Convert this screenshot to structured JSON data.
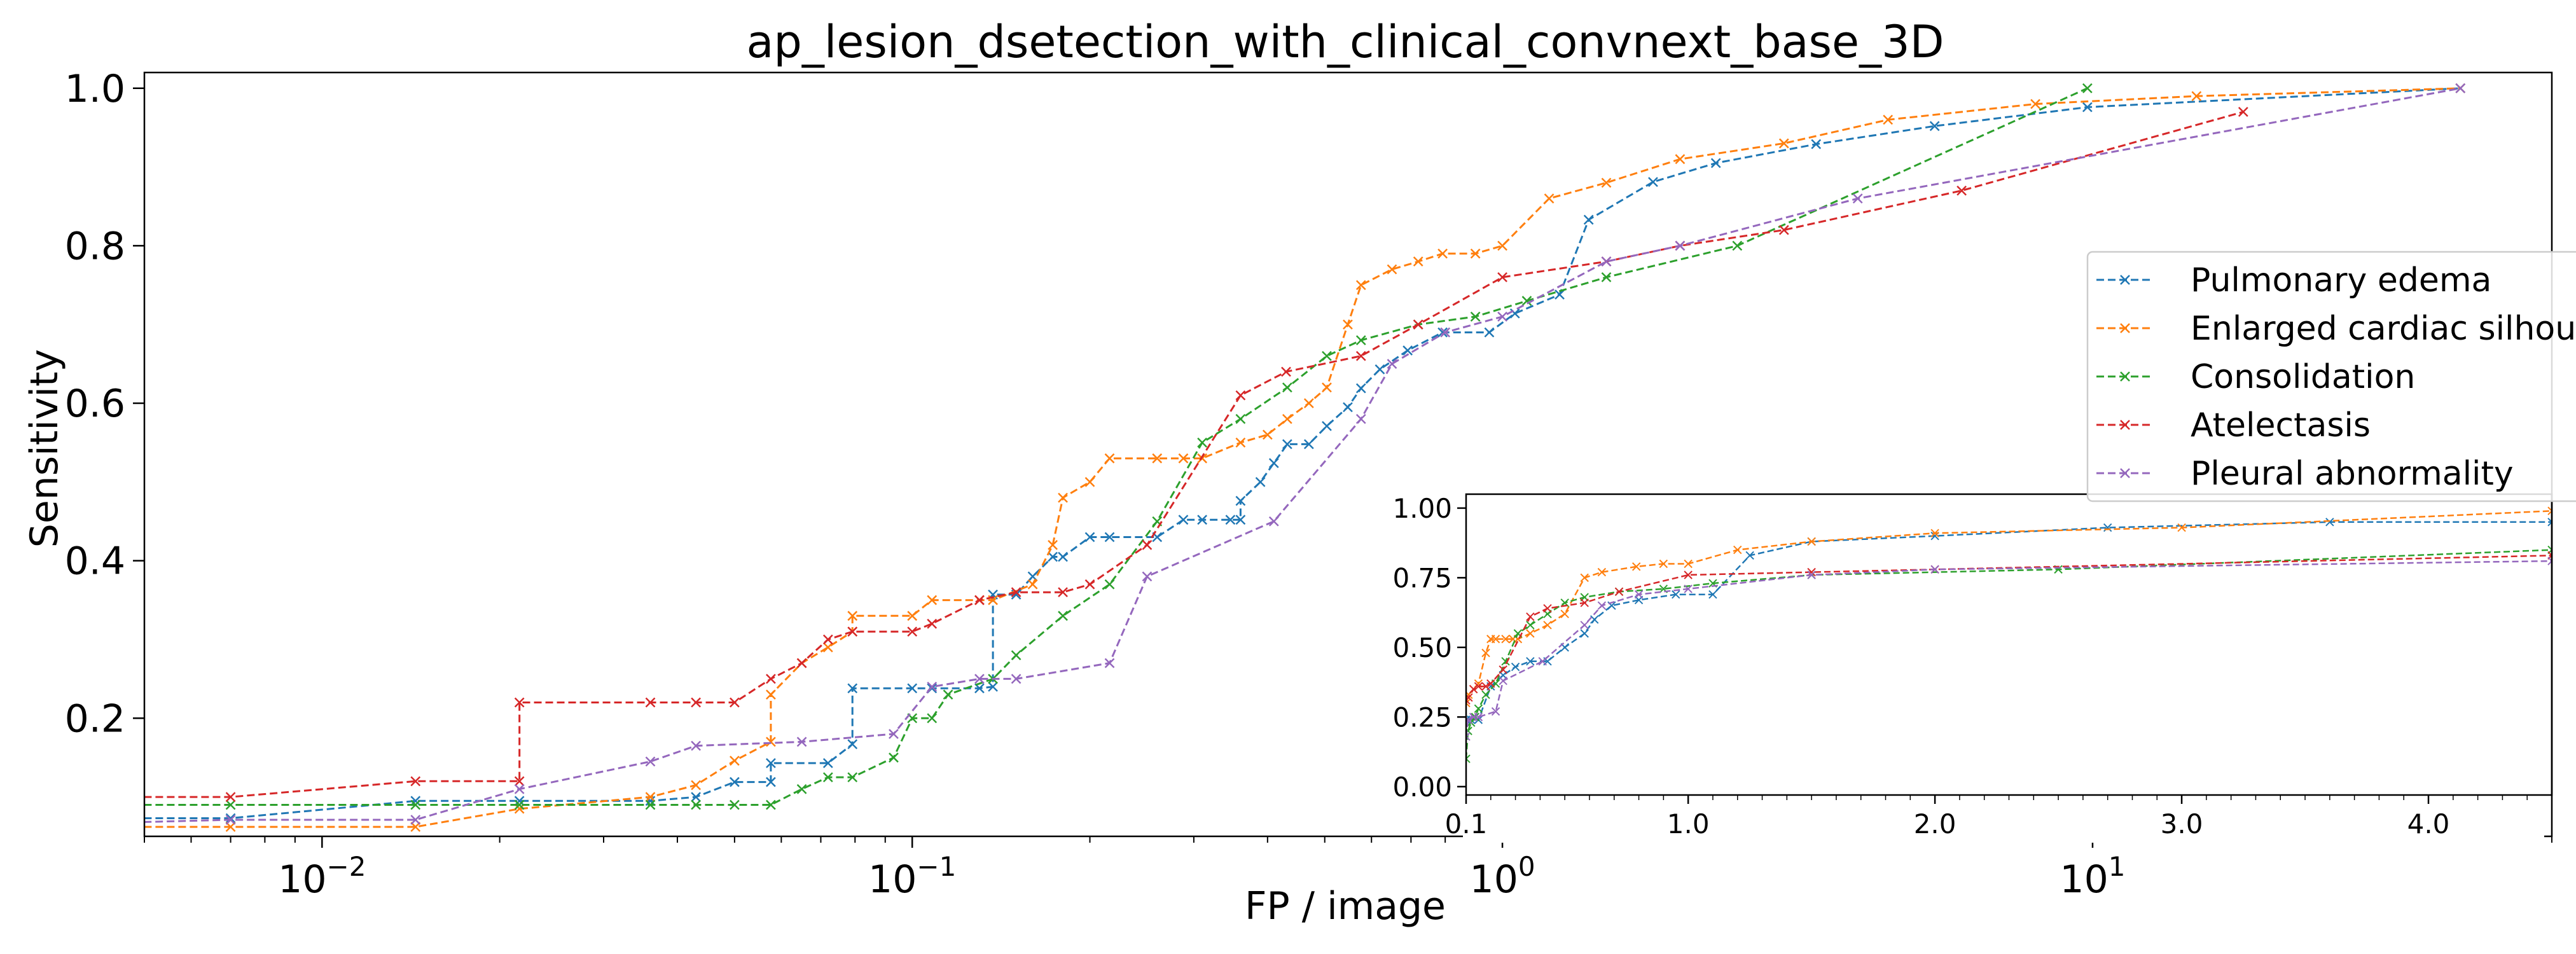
{
  "chart_data": [
    {
      "type": "line",
      "title": "ap_lesion_dsetection_with_clinical_convnext_base_3D",
      "xlabel": "FP / image",
      "ylabel": "Sensitivity",
      "xscale": "log",
      "xlim": [
        0.005,
        60
      ],
      "ylim": [
        0.05,
        1.02
      ],
      "x_ticks": [
        {
          "value": 0.01,
          "label": "10^-2"
        },
        {
          "value": 0.1,
          "label": "10^-1"
        },
        {
          "value": 1,
          "label": "10^0"
        },
        {
          "value": 10,
          "label": "10^1"
        }
      ],
      "y_ticks": [
        {
          "value": 0.2,
          "label": "0.2"
        },
        {
          "value": 0.4,
          "label": "0.4"
        },
        {
          "value": 0.6,
          "label": "0.6"
        },
        {
          "value": 0.8,
          "label": "0.8"
        },
        {
          "value": 1.0,
          "label": "1.0"
        }
      ],
      "grid": false,
      "line_style": "dashed with x markers",
      "legend": {
        "position": "right",
        "entries": [
          "Pulmonary edema",
          "Enlarged cardiac silhouette",
          "Consolidation",
          "Atelectasis",
          "Pleural abnormality"
        ]
      },
      "series": [
        {
          "name": "Pulmonary edema",
          "color": "#1f77b4",
          "x": [
            0.001,
            0.007,
            0.0144,
            0.0216,
            0.036,
            0.043,
            0.05,
            0.0576,
            0.0576,
            0.072,
            0.0792,
            0.0792,
            0.1,
            0.108,
            0.13,
            0.137,
            0.137,
            0.15,
            0.16,
            0.173,
            0.18,
            0.2,
            0.216,
            0.26,
            0.288,
            0.31,
            0.346,
            0.36,
            0.36,
            0.389,
            0.41,
            0.432,
            0.47,
            0.504,
            0.547,
            0.576,
            0.62,
            0.691,
            0.792,
            0.95,
            1.05,
            1.25,
            1.4,
            1.8,
            2.3,
            3.4,
            5.4,
            9.8,
            42
          ],
          "y": [
            0.073,
            0.073,
            0.095,
            0.095,
            0.095,
            0.1,
            0.119,
            0.119,
            0.143,
            0.143,
            0.167,
            0.238,
            0.238,
            0.238,
            0.238,
            0.24,
            0.357,
            0.357,
            0.38,
            0.405,
            0.405,
            0.43,
            0.43,
            0.43,
            0.452,
            0.452,
            0.452,
            0.452,
            0.476,
            0.5,
            0.524,
            0.548,
            0.548,
            0.571,
            0.595,
            0.619,
            0.643,
            0.667,
            0.69,
            0.69,
            0.714,
            0.738,
            0.833,
            0.881,
            0.905,
            0.929,
            0.952,
            0.976,
            1.0
          ]
        },
        {
          "name": "Enlarged cardiac silhouette",
          "color": "#ff7f0e",
          "x": [
            0.001,
            0.007,
            0.0144,
            0.0216,
            0.036,
            0.043,
            0.05,
            0.0576,
            0.0576,
            0.065,
            0.072,
            0.0792,
            0.0792,
            0.1,
            0.108,
            0.13,
            0.137,
            0.16,
            0.173,
            0.18,
            0.2,
            0.216,
            0.26,
            0.288,
            0.31,
            0.36,
            0.4,
            0.432,
            0.47,
            0.504,
            0.547,
            0.576,
            0.65,
            0.72,
            0.792,
            0.9,
            1.0,
            1.2,
            1.5,
            2.0,
            3.0,
            4.5,
            8.0,
            15.0,
            42
          ],
          "y": [
            0.062,
            0.062,
            0.062,
            0.085,
            0.1,
            0.115,
            0.146,
            0.17,
            0.23,
            0.27,
            0.29,
            0.31,
            0.33,
            0.33,
            0.35,
            0.35,
            0.35,
            0.37,
            0.42,
            0.48,
            0.5,
            0.53,
            0.53,
            0.53,
            0.53,
            0.55,
            0.56,
            0.58,
            0.6,
            0.62,
            0.7,
            0.75,
            0.77,
            0.78,
            0.79,
            0.79,
            0.8,
            0.86,
            0.88,
            0.91,
            0.93,
            0.96,
            0.98,
            0.99,
            1.0
          ]
        },
        {
          "name": "Consolidation",
          "color": "#2ca02c",
          "x": [
            0.001,
            0.007,
            0.0144,
            0.0216,
            0.036,
            0.043,
            0.05,
            0.0576,
            0.065,
            0.072,
            0.0792,
            0.093,
            0.1,
            0.108,
            0.115,
            0.137,
            0.15,
            0.18,
            0.216,
            0.26,
            0.31,
            0.36,
            0.432,
            0.504,
            0.576,
            0.72,
            0.9,
            1.1,
            1.5,
            2.5,
            9.8
          ],
          "y": [
            0.09,
            0.09,
            0.09,
            0.09,
            0.09,
            0.09,
            0.09,
            0.09,
            0.11,
            0.125,
            0.125,
            0.15,
            0.2,
            0.2,
            0.23,
            0.25,
            0.28,
            0.33,
            0.37,
            0.45,
            0.55,
            0.58,
            0.62,
            0.66,
            0.68,
            0.7,
            0.71,
            0.73,
            0.76,
            0.8,
            1.0
          ]
        },
        {
          "name": "Atelectasis",
          "color": "#d62728",
          "x": [
            0.001,
            0.007,
            0.0144,
            0.0216,
            0.0216,
            0.036,
            0.043,
            0.05,
            0.0576,
            0.065,
            0.072,
            0.0792,
            0.1,
            0.108,
            0.13,
            0.15,
            0.18,
            0.2,
            0.25,
            0.36,
            0.43,
            0.576,
            0.72,
            1.0,
            1.5,
            2.0,
            3.0,
            6.0,
            18.0
          ],
          "y": [
            0.1,
            0.1,
            0.12,
            0.12,
            0.22,
            0.22,
            0.22,
            0.22,
            0.25,
            0.27,
            0.3,
            0.31,
            0.31,
            0.32,
            0.35,
            0.36,
            0.36,
            0.37,
            0.42,
            0.61,
            0.64,
            0.66,
            0.7,
            0.76,
            0.78,
            0.8,
            0.82,
            0.87,
            0.97
          ]
        },
        {
          "name": "Pleural abnormality",
          "color": "#9467bd",
          "x": [
            0.001,
            0.007,
            0.0144,
            0.0216,
            0.036,
            0.043,
            0.065,
            0.093,
            0.108,
            0.13,
            0.15,
            0.216,
            0.25,
            0.41,
            0.576,
            0.65,
            0.8,
            1.0,
            1.5,
            2.0,
            4.0,
            42
          ],
          "y": [
            0.055,
            0.071,
            0.071,
            0.11,
            0.145,
            0.165,
            0.17,
            0.18,
            0.24,
            0.25,
            0.25,
            0.27,
            0.38,
            0.45,
            0.58,
            0.65,
            0.69,
            0.71,
            0.78,
            0.8,
            0.86,
            1.0
          ]
        }
      ]
    },
    {
      "type": "line",
      "title": "",
      "xscale": "linear",
      "xlim": [
        0.1,
        4.5
      ],
      "ylim": [
        -0.03,
        1.05
      ],
      "x_ticks": [
        {
          "value": 0.1,
          "label": "0.1"
        },
        {
          "value": 1.0,
          "label": "1.0"
        },
        {
          "value": 2.0,
          "label": "2.0"
        },
        {
          "value": 3.0,
          "label": "3.0"
        },
        {
          "value": 4.0,
          "label": "4.0"
        }
      ],
      "y_ticks": [
        {
          "value": 0.0,
          "label": "0.00"
        },
        {
          "value": 0.25,
          "label": "0.25"
        },
        {
          "value": 0.5,
          "label": "0.50"
        },
        {
          "value": 0.75,
          "label": "0.75"
        },
        {
          "value": 1.0,
          "label": "1.00"
        }
      ],
      "grid": false,
      "line_style": "dashed with x markers",
      "series": [
        {
          "name": "Pulmonary edema",
          "color": "#1f77b4",
          "x": [
            0.1,
            0.12,
            0.15,
            0.2,
            0.25,
            0.3,
            0.36,
            0.43,
            0.5,
            0.58,
            0.62,
            0.69,
            0.8,
            0.95,
            1.1,
            1.25,
            1.5,
            2.0,
            2.7,
            3.6,
            4.5
          ],
          "y": [
            0.24,
            0.24,
            0.24,
            0.36,
            0.4,
            0.43,
            0.45,
            0.45,
            0.5,
            0.55,
            0.6,
            0.65,
            0.67,
            0.69,
            0.69,
            0.83,
            0.88,
            0.9,
            0.93,
            0.95,
            0.95
          ]
        },
        {
          "name": "Enlarged cardiac silhouette",
          "color": "#ff7f0e",
          "x": [
            0.1,
            0.11,
            0.13,
            0.15,
            0.18,
            0.2,
            0.22,
            0.26,
            0.29,
            0.31,
            0.36,
            0.43,
            0.5,
            0.58,
            0.65,
            0.79,
            0.9,
            1.0,
            1.2,
            1.5,
            2.0,
            3.0,
            4.5
          ],
          "y": [
            0.3,
            0.33,
            0.35,
            0.37,
            0.48,
            0.53,
            0.53,
            0.53,
            0.53,
            0.53,
            0.55,
            0.58,
            0.62,
            0.75,
            0.77,
            0.79,
            0.8,
            0.8,
            0.85,
            0.88,
            0.91,
            0.93,
            0.99
          ]
        },
        {
          "name": "Consolidation",
          "color": "#2ca02c",
          "x": [
            0.1,
            0.108,
            0.12,
            0.137,
            0.15,
            0.18,
            0.22,
            0.26,
            0.31,
            0.36,
            0.43,
            0.5,
            0.58,
            0.72,
            0.9,
            1.1,
            1.5,
            2.5,
            4.5
          ],
          "y": [
            0.1,
            0.2,
            0.23,
            0.25,
            0.28,
            0.33,
            0.37,
            0.45,
            0.55,
            0.58,
            0.62,
            0.66,
            0.68,
            0.7,
            0.71,
            0.73,
            0.76,
            0.78,
            0.85
          ]
        },
        {
          "name": "Atelectasis",
          "color": "#d62728",
          "x": [
            0.1,
            0.11,
            0.13,
            0.15,
            0.18,
            0.2,
            0.25,
            0.36,
            0.43,
            0.58,
            0.72,
            1.0,
            1.5,
            2.0,
            4.5
          ],
          "y": [
            0.31,
            0.32,
            0.35,
            0.36,
            0.36,
            0.37,
            0.42,
            0.61,
            0.64,
            0.66,
            0.7,
            0.76,
            0.77,
            0.78,
            0.83
          ]
        },
        {
          "name": "Pleural abnormality",
          "color": "#9467bd",
          "x": [
            0.1,
            0.108,
            0.13,
            0.15,
            0.22,
            0.25,
            0.41,
            0.58,
            0.65,
            0.8,
            1.0,
            1.5,
            2.0,
            4.5
          ],
          "y": [
            0.18,
            0.24,
            0.25,
            0.25,
            0.27,
            0.38,
            0.45,
            0.58,
            0.65,
            0.69,
            0.71,
            0.76,
            0.78,
            0.81
          ]
        }
      ]
    }
  ]
}
